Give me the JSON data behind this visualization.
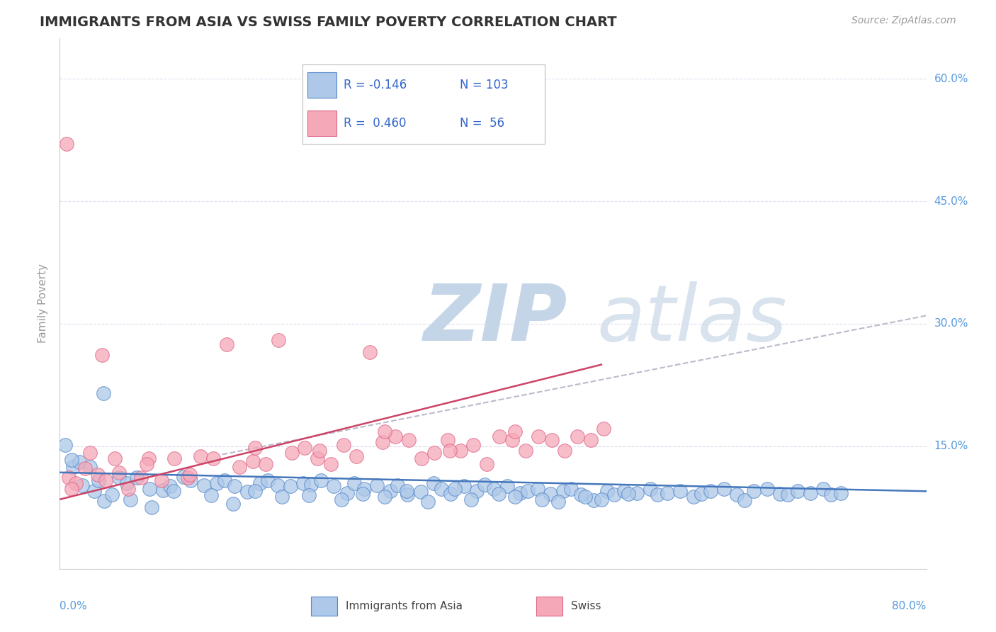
{
  "title": "IMMIGRANTS FROM ASIA VS SWISS FAMILY POVERTY CORRELATION CHART",
  "source": "Source: ZipAtlas.com",
  "ylabel": "Family Poverty",
  "xlim": [
    0.0,
    80.0
  ],
  "ylim": [
    0.0,
    65.0
  ],
  "yticks": [
    0.0,
    15.0,
    30.0,
    45.0,
    60.0
  ],
  "ytick_labels": [
    "",
    "15.0%",
    "30.0%",
    "45.0%",
    "60.0%"
  ],
  "blue_color": "#adc8e8",
  "pink_color": "#f5a8b8",
  "blue_edge_color": "#5588cc",
  "pink_edge_color": "#dd6688",
  "blue_trend_color": "#4477bb",
  "pink_trend_color": "#cc4466",
  "dashed_color": "#bbbbcc",
  "watermark_zip_color": "#c5d5e8",
  "watermark_atlas_color": "#c8d8e8",
  "background_color": "#ffffff",
  "grid_color": "#ddddee",
  "title_color": "#333333",
  "axis_tick_color": "#5599dd",
  "legend_text_color": "#3366cc",
  "blue_scatter_x": [
    1.2,
    2.1,
    1.8,
    0.5,
    3.2,
    4.1,
    5.5,
    2.8,
    1.1,
    3.6,
    4.8,
    6.2,
    7.1,
    8.3,
    9.5,
    10.2,
    11.4,
    12.1,
    13.3,
    14.5,
    15.2,
    16.1,
    17.3,
    18.5,
    19.2,
    20.1,
    21.3,
    22.5,
    23.2,
    24.1,
    25.3,
    26.5,
    27.2,
    28.1,
    29.3,
    30.5,
    31.2,
    32.1,
    33.3,
    34.5,
    35.2,
    36.1,
    37.3,
    38.5,
    39.2,
    40.1,
    41.3,
    42.5,
    43.2,
    44.1,
    45.3,
    46.5,
    47.2,
    48.1,
    49.3,
    50.5,
    51.2,
    52.1,
    53.3,
    54.5,
    55.2,
    56.1,
    57.3,
    58.5,
    59.2,
    60.1,
    61.3,
    62.5,
    63.2,
    64.1,
    65.3,
    66.5,
    67.2,
    68.1,
    69.3,
    70.5,
    71.2,
    72.1,
    4.0,
    6.5,
    8.5,
    10.5,
    14.0,
    16.0,
    18.0,
    20.5,
    23.0,
    26.0,
    28.0,
    30.0,
    32.0,
    34.0,
    36.5,
    38.0,
    40.5,
    42.0,
    44.5,
    46.0,
    48.5,
    50.0,
    52.5
  ],
  "blue_scatter_y": [
    12.5,
    10.2,
    13.1,
    15.2,
    9.5,
    8.3,
    11.2,
    12.5,
    13.3,
    10.8,
    9.1,
    10.5,
    11.2,
    9.8,
    9.6,
    10.1,
    11.3,
    10.8,
    10.2,
    10.5,
    10.8,
    10.1,
    9.4,
    10.5,
    10.8,
    10.2,
    10.1,
    10.5,
    10.3,
    10.8,
    10.1,
    9.3,
    10.5,
    9.8,
    10.2,
    9.5,
    10.2,
    9.1,
    9.4,
    10.5,
    9.8,
    9.2,
    10.1,
    9.5,
    10.3,
    9.8,
    10.1,
    9.3,
    9.5,
    9.8,
    9.2,
    9.5,
    9.8,
    9.1,
    8.4,
    9.5,
    9.1,
    9.5,
    9.3,
    9.8,
    9.1,
    9.3,
    9.5,
    8.8,
    9.2,
    9.5,
    9.8,
    9.1,
    8.4,
    9.5,
    9.8,
    9.2,
    9.1,
    9.5,
    9.3,
    9.8,
    9.1,
    9.3,
    21.5,
    8.5,
    7.5,
    9.5,
    9.0,
    8.0,
    9.5,
    8.8,
    9.0,
    8.5,
    9.2,
    8.8,
    9.5,
    8.2,
    9.8,
    8.5,
    9.2,
    8.8,
    8.5,
    8.2,
    8.8,
    8.5,
    9.2
  ],
  "pink_scatter_x": [
    0.8,
    1.5,
    2.3,
    1.1,
    3.5,
    4.2,
    0.6,
    2.8,
    3.9,
    5.1,
    6.3,
    7.5,
    8.2,
    9.4,
    10.6,
    11.8,
    13.0,
    14.2,
    15.4,
    16.6,
    17.8,
    19.0,
    20.2,
    21.4,
    22.6,
    23.8,
    25.0,
    26.2,
    27.4,
    28.6,
    29.8,
    31.0,
    32.2,
    33.4,
    34.6,
    35.8,
    37.0,
    38.2,
    39.4,
    40.6,
    41.8,
    43.0,
    44.2,
    45.4,
    46.6,
    47.8,
    49.0,
    50.2,
    5.5,
    8.0,
    12.0,
    18.0,
    24.0,
    30.0,
    36.0,
    42.0
  ],
  "pink_scatter_y": [
    11.2,
    10.5,
    12.3,
    9.8,
    11.5,
    10.8,
    52.0,
    14.2,
    26.2,
    13.5,
    9.8,
    11.2,
    13.5,
    10.8,
    13.5,
    11.2,
    13.8,
    13.5,
    27.5,
    12.5,
    13.2,
    12.8,
    28.0,
    14.2,
    14.8,
    13.5,
    12.8,
    15.2,
    13.8,
    26.5,
    15.5,
    16.2,
    15.8,
    13.5,
    14.2,
    15.8,
    14.5,
    15.2,
    12.8,
    16.2,
    15.8,
    14.5,
    16.2,
    15.8,
    14.5,
    16.2,
    15.8,
    17.2,
    11.8,
    12.8,
    11.5,
    14.8,
    14.5,
    16.8,
    14.5,
    16.8
  ],
  "blue_trend": [
    0,
    80,
    11.8,
    9.5
  ],
  "pink_trend": [
    0,
    50,
    8.5,
    25.0
  ],
  "dashed_trend": [
    15,
    80,
    14.0,
    31.0
  ]
}
